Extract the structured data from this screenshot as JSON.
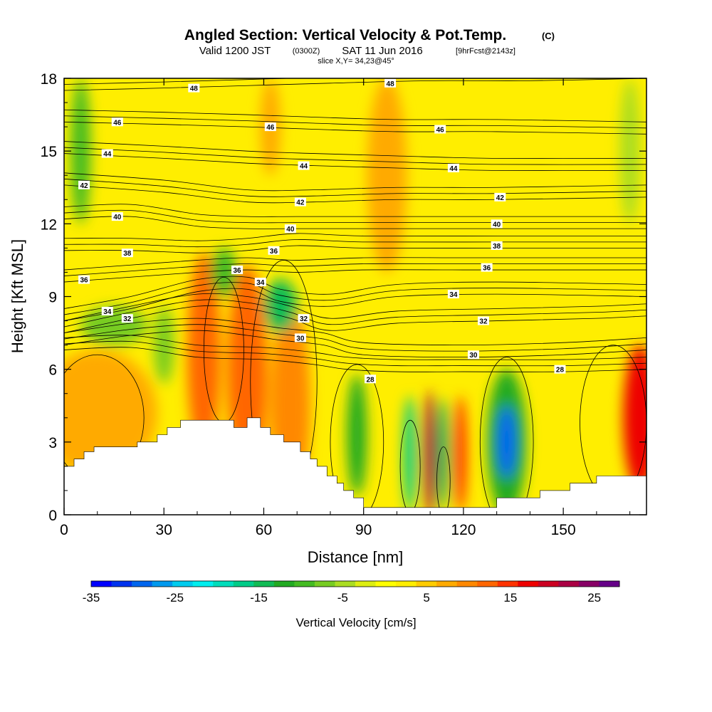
{
  "chart_data": {
    "type": "heatmap",
    "title": "Angled Section: Vertical Velocity & Pot.Temp.",
    "title_unit": "(C)",
    "subtitle": {
      "valid": "Valid 1200 JST",
      "utc": "(0300Z)",
      "date": "SAT 11 Jun 2016",
      "forecast": "[9hrFcst@2143z]",
      "slice": "slice X,Y= 34,23@45°"
    },
    "xlabel": "Distance [nm]",
    "ylabel": "Height [Kft MSL]",
    "xlim": [
      0,
      175
    ],
    "ylim": [
      0,
      18
    ],
    "x_ticks": [
      "0",
      "30",
      "60",
      "90",
      "120",
      "150"
    ],
    "x_tick_values": [
      0,
      30,
      60,
      90,
      120,
      150
    ],
    "y_ticks": [
      "0",
      "3",
      "6",
      "9",
      "12",
      "15",
      "18"
    ],
    "y_tick_values": [
      0,
      3,
      6,
      9,
      12,
      15,
      18
    ],
    "colorbar": {
      "label": "Vertical Velocity [cm/s]",
      "tick_labels": [
        "-35",
        "-25",
        "-15",
        "-5",
        "5",
        "15",
        "25"
      ],
      "tick_values": [
        -35,
        -25,
        -15,
        -5,
        5,
        15,
        25
      ],
      "range": [
        -35,
        28
      ],
      "colors": [
        "#0000ff",
        "#0033ee",
        "#0066ee",
        "#0099ee",
        "#00ccee",
        "#00eeee",
        "#00ddbb",
        "#00cc88",
        "#11bb55",
        "#22aa22",
        "#44bb22",
        "#77cc22",
        "#aadd22",
        "#ddee11",
        "#ffff00",
        "#ffee00",
        "#ffcc00",
        "#ffaa00",
        "#ff8800",
        "#ff6600",
        "#ff3300",
        "#ee0000",
        "#cc0022",
        "#aa0044",
        "#880066",
        "#660088"
      ]
    },
    "background_velocity": 3,
    "velocity_cells": [
      {
        "x": 42,
        "z": 6.6,
        "w": 3,
        "h": 2.5,
        "v": 25
      },
      {
        "x": 42,
        "z": 6.6,
        "w": 5,
        "h": 4.2,
        "v": 12
      },
      {
        "x": 55,
        "z": 5.2,
        "w": 3,
        "h": 3.4,
        "v": 28
      },
      {
        "x": 55,
        "z": 5.8,
        "w": 6,
        "h": 4.5,
        "v": 13
      },
      {
        "x": 68,
        "z": 4.2,
        "w": 4,
        "h": 3.0,
        "v": 16
      },
      {
        "x": 68,
        "z": 4.5,
        "w": 6,
        "h": 4.2,
        "v": 10
      },
      {
        "x": 10,
        "z": 3.5,
        "w": 12,
        "h": 2.0,
        "v": 14
      },
      {
        "x": 10,
        "z": 4.2,
        "w": 18,
        "h": 2.6,
        "v": 8
      },
      {
        "x": 173,
        "z": 4.0,
        "w": 5,
        "h": 3.0,
        "v": 16
      },
      {
        "x": 110,
        "z": 2.5,
        "w": 2,
        "h": 2.6,
        "v": 22
      },
      {
        "x": 119,
        "z": 2.5,
        "w": 2,
        "h": 2.4,
        "v": 14
      },
      {
        "x": 104,
        "z": 2.5,
        "w": 2,
        "h": 2.4,
        "v": -18
      },
      {
        "x": 114,
        "z": 2.5,
        "w": 2,
        "h": 2.3,
        "v": -15
      },
      {
        "x": 88,
        "z": 3.3,
        "w": 3,
        "h": 2.5,
        "v": -11
      },
      {
        "x": 133,
        "z": 3.0,
        "w": 6,
        "h": 3.0,
        "v": -13
      },
      {
        "x": 133,
        "z": 3.0,
        "w": 3,
        "h": 1.5,
        "v": -28
      },
      {
        "x": 65,
        "z": 8.6,
        "w": 5,
        "h": 1.1,
        "v": -14
      },
      {
        "x": 48,
        "z": 10.0,
        "w": 4,
        "h": 1.0,
        "v": -9
      },
      {
        "x": 15,
        "z": 7.8,
        "w": 10,
        "h": 0.8,
        "v": -8
      },
      {
        "x": 5,
        "z": 15.0,
        "w": 3,
        "h": 3.0,
        "v": -9
      },
      {
        "x": 30,
        "z": 7.0,
        "w": 3,
        "h": 1.6,
        "v": -6
      },
      {
        "x": 62,
        "z": 16.0,
        "w": 3,
        "h": 2.0,
        "v": 8
      },
      {
        "x": 97,
        "z": 14.0,
        "w": 6,
        "h": 4.0,
        "v": 7
      },
      {
        "x": 170,
        "z": 15.0,
        "w": 3,
        "h": 3.0,
        "v": -4
      }
    ],
    "terrain_kft": [
      [
        0,
        2.0
      ],
      [
        3,
        2.0
      ],
      [
        3,
        2.3
      ],
      [
        6,
        2.3
      ],
      [
        6,
        2.6
      ],
      [
        9,
        2.6
      ],
      [
        9,
        2.8
      ],
      [
        22,
        2.8
      ],
      [
        22,
        3.0
      ],
      [
        28,
        3.0
      ],
      [
        28,
        3.3
      ],
      [
        31,
        3.3
      ],
      [
        31,
        3.6
      ],
      [
        35,
        3.6
      ],
      [
        35,
        3.9
      ],
      [
        51,
        3.9
      ],
      [
        51,
        3.6
      ],
      [
        55,
        3.6
      ],
      [
        55,
        4.0
      ],
      [
        59,
        4.0
      ],
      [
        59,
        3.6
      ],
      [
        62,
        3.6
      ],
      [
        62,
        3.3
      ],
      [
        66,
        3.3
      ],
      [
        66,
        3.0
      ],
      [
        71,
        3.0
      ],
      [
        71,
        2.6
      ],
      [
        74,
        2.6
      ],
      [
        74,
        2.3
      ],
      [
        76,
        2.3
      ],
      [
        76,
        2.0
      ],
      [
        79,
        2.0
      ],
      [
        79,
        1.6
      ],
      [
        82,
        1.6
      ],
      [
        82,
        1.3
      ],
      [
        84,
        1.3
      ],
      [
        84,
        1.0
      ],
      [
        87,
        1.0
      ],
      [
        87,
        0.7
      ],
      [
        90,
        0.7
      ],
      [
        90,
        0.3
      ],
      [
        130,
        0.3
      ],
      [
        130,
        0.7
      ],
      [
        143,
        0.7
      ],
      [
        143,
        1.0
      ],
      [
        152,
        1.0
      ],
      [
        152,
        1.3
      ],
      [
        160,
        1.3
      ],
      [
        160,
        1.6
      ],
      [
        175,
        1.6
      ]
    ],
    "isentropes": [
      {
        "label": "28",
        "points": [
          [
            0,
            6.8
          ],
          [
            20,
            6.9
          ],
          [
            40,
            6.5
          ],
          [
            60,
            6.4
          ],
          [
            75,
            6.2
          ],
          [
            85,
            6.0
          ],
          [
            100,
            5.9
          ],
          [
            120,
            5.9
          ],
          [
            150,
            5.9
          ],
          [
            175,
            6.0
          ]
        ],
        "labels_at": [
          [
            92,
            5.6
          ],
          [
            149,
            6.0
          ]
        ]
      },
      {
        "label": "30",
        "points": [
          [
            0,
            7.0
          ],
          [
            20,
            7.4
          ],
          [
            40,
            7.6
          ],
          [
            55,
            7.4
          ],
          [
            65,
            7.2
          ],
          [
            78,
            7.0
          ],
          [
            90,
            6.6
          ],
          [
            120,
            6.5
          ],
          [
            150,
            6.6
          ],
          [
            175,
            6.8
          ]
        ],
        "labels_at": [
          [
            71,
            7.3
          ],
          [
            123,
            6.6
          ]
        ]
      },
      {
        "label": "32",
        "points": [
          [
            0,
            7.5
          ],
          [
            20,
            8.1
          ],
          [
            40,
            8.6
          ],
          [
            55,
            8.5
          ],
          [
            68,
            8.1
          ],
          [
            80,
            7.6
          ],
          [
            100,
            7.9
          ],
          [
            130,
            8.0
          ],
          [
            160,
            8.1
          ],
          [
            175,
            8.2
          ]
        ],
        "labels_at": [
          [
            19,
            8.1
          ],
          [
            72,
            8.1
          ],
          [
            126,
            8.0
          ]
        ]
      },
      {
        "label": "34",
        "points": [
          [
            0,
            8.0
          ],
          [
            20,
            8.5
          ],
          [
            40,
            9.2
          ],
          [
            55,
            9.3
          ],
          [
            65,
            8.8
          ],
          [
            80,
            8.6
          ],
          [
            100,
            9.0
          ],
          [
            130,
            9.1
          ],
          [
            175,
            9.0
          ]
        ],
        "labels_at": [
          [
            13,
            8.4
          ],
          [
            59,
            9.6
          ],
          [
            117,
            9.1
          ]
        ]
      },
      {
        "label": "36",
        "points": [
          [
            0,
            9.6
          ],
          [
            20,
            9.8
          ],
          [
            40,
            10.0
          ],
          [
            55,
            10.1
          ],
          [
            70,
            10.0
          ],
          [
            90,
            10.1
          ],
          [
            120,
            10.1
          ],
          [
            150,
            10.1
          ],
          [
            175,
            10.1
          ]
        ],
        "labels_at": [
          [
            6,
            9.7
          ],
          [
            52,
            10.1
          ],
          [
            63,
            10.9
          ],
          [
            127,
            10.2
          ]
        ]
      },
      {
        "label": "38",
        "points": [
          [
            0,
            10.9
          ],
          [
            20,
            10.9
          ],
          [
            40,
            10.8
          ],
          [
            55,
            10.9
          ],
          [
            70,
            11.1
          ],
          [
            90,
            11.0
          ],
          [
            130,
            11.0
          ],
          [
            175,
            11.0
          ]
        ],
        "labels_at": [
          [
            19,
            10.8
          ],
          [
            130,
            11.1
          ]
        ]
      },
      {
        "label": "40",
        "points": [
          [
            0,
            12.2
          ],
          [
            20,
            12.3
          ],
          [
            40,
            11.9
          ],
          [
            55,
            11.8
          ],
          [
            70,
            11.8
          ],
          [
            90,
            11.8
          ],
          [
            130,
            11.8
          ],
          [
            175,
            11.8
          ]
        ],
        "labels_at": [
          [
            16,
            12.3
          ],
          [
            68,
            11.8
          ],
          [
            130,
            12.0
          ]
        ]
      },
      {
        "label": "42",
        "points": [
          [
            0,
            13.6
          ],
          [
            30,
            13.3
          ],
          [
            55,
            12.9
          ],
          [
            75,
            12.9
          ],
          [
            100,
            13.0
          ],
          [
            130,
            13.0
          ],
          [
            175,
            13.1
          ]
        ],
        "labels_at": [
          [
            6,
            13.6
          ],
          [
            71,
            12.9
          ],
          [
            131,
            13.1
          ]
        ]
      },
      {
        "label": "44",
        "points": [
          [
            0,
            14.9
          ],
          [
            30,
            14.7
          ],
          [
            55,
            14.5
          ],
          [
            75,
            14.4
          ],
          [
            100,
            14.3
          ],
          [
            130,
            14.2
          ],
          [
            175,
            14.2
          ]
        ],
        "labels_at": [
          [
            13,
            14.9
          ],
          [
            72,
            14.4
          ],
          [
            117,
            14.3
          ]
        ]
      },
      {
        "label": "46",
        "points": [
          [
            0,
            16.2
          ],
          [
            30,
            16.1
          ],
          [
            55,
            16.0
          ],
          [
            75,
            15.9
          ],
          [
            100,
            15.8
          ],
          [
            130,
            15.8
          ],
          [
            175,
            15.7
          ]
        ],
        "labels_at": [
          [
            16,
            16.2
          ],
          [
            62,
            16.0
          ],
          [
            113,
            15.9
          ]
        ]
      },
      {
        "label": "48",
        "points": [
          [
            0,
            17.5
          ],
          [
            30,
            17.6
          ],
          [
            55,
            17.7
          ],
          [
            80,
            17.8
          ],
          [
            110,
            17.9
          ],
          [
            140,
            17.9
          ],
          [
            175,
            18.0
          ]
        ],
        "labels_at": [
          [
            39,
            17.6
          ],
          [
            98,
            17.8
          ]
        ]
      }
    ],
    "velocity_contour_rings": [
      {
        "x": 10,
        "z": 4.0,
        "w": 14,
        "h": 2.6
      },
      {
        "x": 48,
        "z": 6.8,
        "w": 6,
        "h": 3.0
      },
      {
        "x": 66,
        "z": 5.5,
        "w": 10,
        "h": 5.0
      },
      {
        "x": 88,
        "z": 3.0,
        "w": 8,
        "h": 3.2
      },
      {
        "x": 104,
        "z": 2.0,
        "w": 3,
        "h": 1.9
      },
      {
        "x": 114,
        "z": 1.4,
        "w": 2,
        "h": 1.4
      },
      {
        "x": 133,
        "z": 3.0,
        "w": 8,
        "h": 3.5
      },
      {
        "x": 165,
        "z": 3.8,
        "w": 10,
        "h": 3.2
      }
    ]
  }
}
